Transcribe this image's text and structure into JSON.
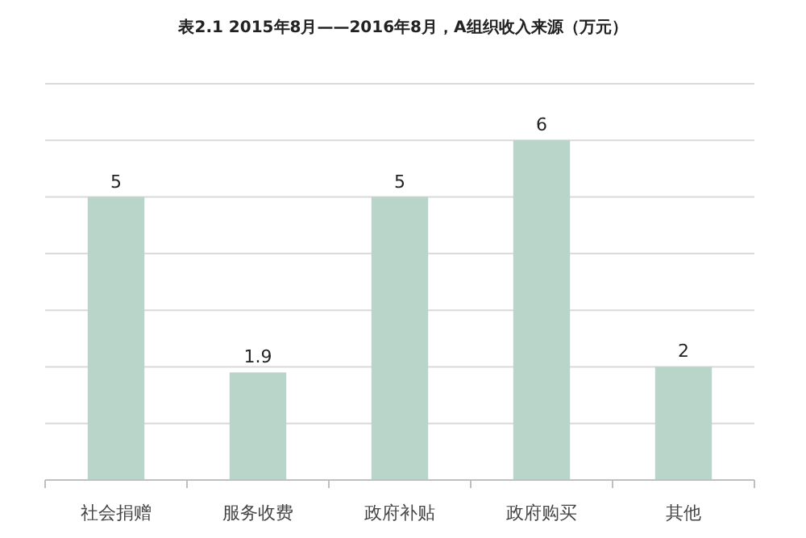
{
  "chart_data": {
    "type": "bar",
    "title": "表2.1 2015年8月——2016年8月，A组织收入来源（万元）",
    "categories": [
      "社会捐赠",
      "服务收费",
      "政府补贴",
      "政府购买",
      "其他"
    ],
    "values": [
      5,
      1.9,
      5,
      6,
      2
    ],
    "color": "#b9d4c9",
    "ylim": [
      0,
      7
    ],
    "yticks": [
      0,
      {
        "value": 1,
        "label": null
      },
      {
        "value": 2,
        "label": null
      },
      {
        "value": 3,
        "label": null
      },
      {
        "value": 4,
        "label": null
      },
      {
        "value": 5,
        "label": null
      },
      {
        "value": 6,
        "label": null
      },
      {
        "value": 7,
        "label": null
      }
    ],
    "tick_labels": "x",
    "grid": "y",
    "data_labels": true
  }
}
